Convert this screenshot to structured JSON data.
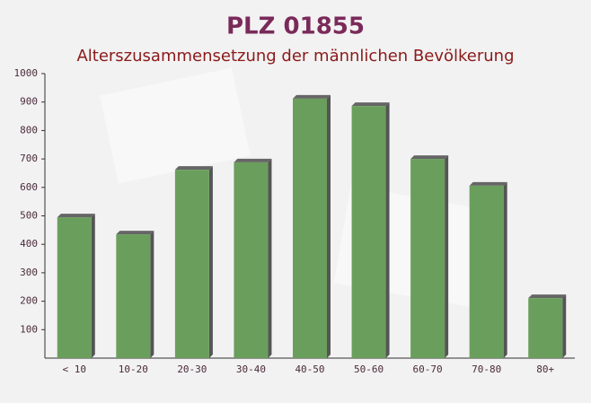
{
  "chart_data": {
    "type": "bar",
    "title": "PLZ 01855",
    "subtitle": "Alterszusammensetzung der männlichen Bevölkerung",
    "categories": [
      "< 10",
      "10-20",
      "20-30",
      "30-40",
      "40-50",
      "50-60",
      "60-70",
      "70-80",
      "80+"
    ],
    "values": [
      495,
      435,
      662,
      688,
      912,
      886,
      700,
      606,
      211
    ],
    "color": "#6a9e5c",
    "ylim": [
      0,
      1000
    ],
    "yticks": [
      100,
      200,
      300,
      400,
      500,
      600,
      700,
      800,
      900,
      1000
    ],
    "grid": false
  }
}
